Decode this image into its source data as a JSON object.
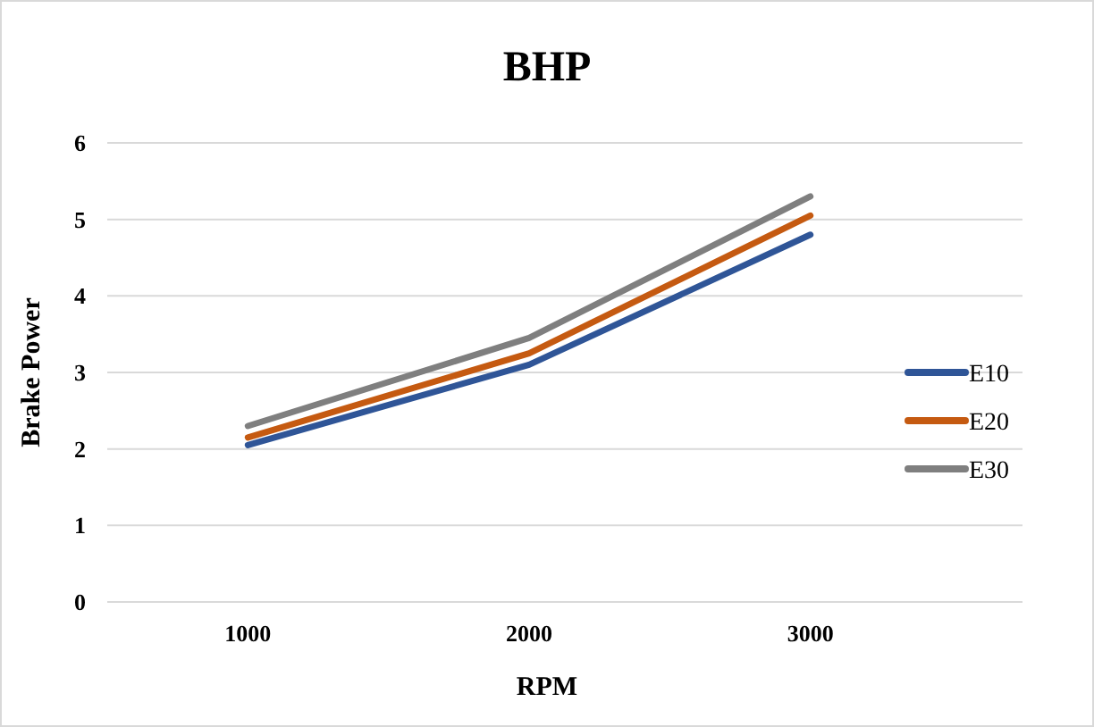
{
  "chart_data": {
    "type": "line",
    "title": "BHP",
    "xlabel": "RPM",
    "ylabel": "Brake Power",
    "categories": [
      "1000",
      "2000",
      "3000"
    ],
    "series": [
      {
        "name": "E10",
        "color": "#2f5597",
        "values": [
          2.05,
          3.1,
          4.8
        ]
      },
      {
        "name": "E20",
        "color": "#c55a11",
        "values": [
          2.15,
          3.25,
          5.05
        ]
      },
      {
        "name": "E30",
        "color": "#7f7f7f",
        "values": [
          2.3,
          3.45,
          5.3
        ]
      }
    ],
    "ylim": [
      0,
      6
    ],
    "yticks": [
      0,
      1,
      2,
      3,
      4,
      5,
      6
    ],
    "grid": "y",
    "legend": "right",
    "marker": "none",
    "line_style": "solid"
  }
}
